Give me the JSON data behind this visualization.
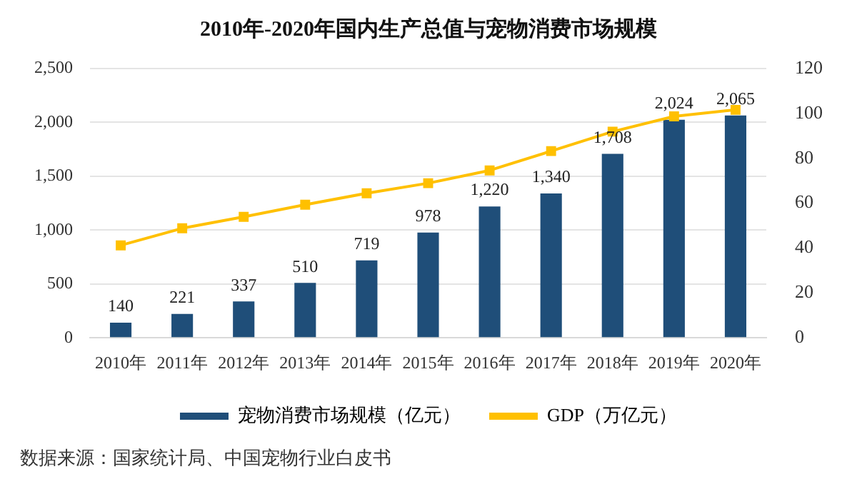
{
  "chart_data": {
    "type": "bar",
    "title": "2010年-2020年国内生产总值与宠物消费市场规模",
    "categories": [
      "2010年",
      "2011年",
      "2012年",
      "2013年",
      "2014年",
      "2015年",
      "2016年",
      "2017年",
      "2018年",
      "2019年",
      "2020年"
    ],
    "series": [
      {
        "name": "宠物消费市场规模（亿元）",
        "color": "#1f4e79",
        "values": [
          140,
          221,
          337,
          510,
          719,
          978,
          1220,
          1340,
          1708,
          2024,
          2065
        ],
        "value_labels": [
          "140",
          "221",
          "337",
          "510",
          "719",
          "978",
          "1,220",
          "1,340",
          "1,708",
          "2,024",
          "2,065"
        ]
      },
      {
        "name": "GDP（万亿元）",
        "type": "line",
        "axis": "y2",
        "color": "#ffc000",
        "marker": "square",
        "values": [
          41.2,
          48.8,
          53.9,
          59.3,
          64.4,
          68.9,
          74.6,
          83.2,
          91.9,
          98.7,
          101.6
        ]
      }
    ],
    "ylim": [
      0,
      2500
    ],
    "yticks": [
      0,
      {
        "value": 500,
        "label": "500"
      },
      {
        "value": 1000,
        "label": "1,000"
      },
      {
        "value": 1500,
        "label": "1,500"
      },
      {
        "value": 2000,
        "label": "2,000"
      },
      {
        "value": 2500,
        "label": "2,500"
      }
    ],
    "y2lim": [
      0,
      120
    ],
    "y2ticks": [
      0,
      20,
      40,
      60,
      80,
      100,
      120
    ],
    "grid": "y",
    "legend": "bottom",
    "annotations": [
      "数据来源：国家统计局、中国宠物行业白皮书"
    ]
  }
}
